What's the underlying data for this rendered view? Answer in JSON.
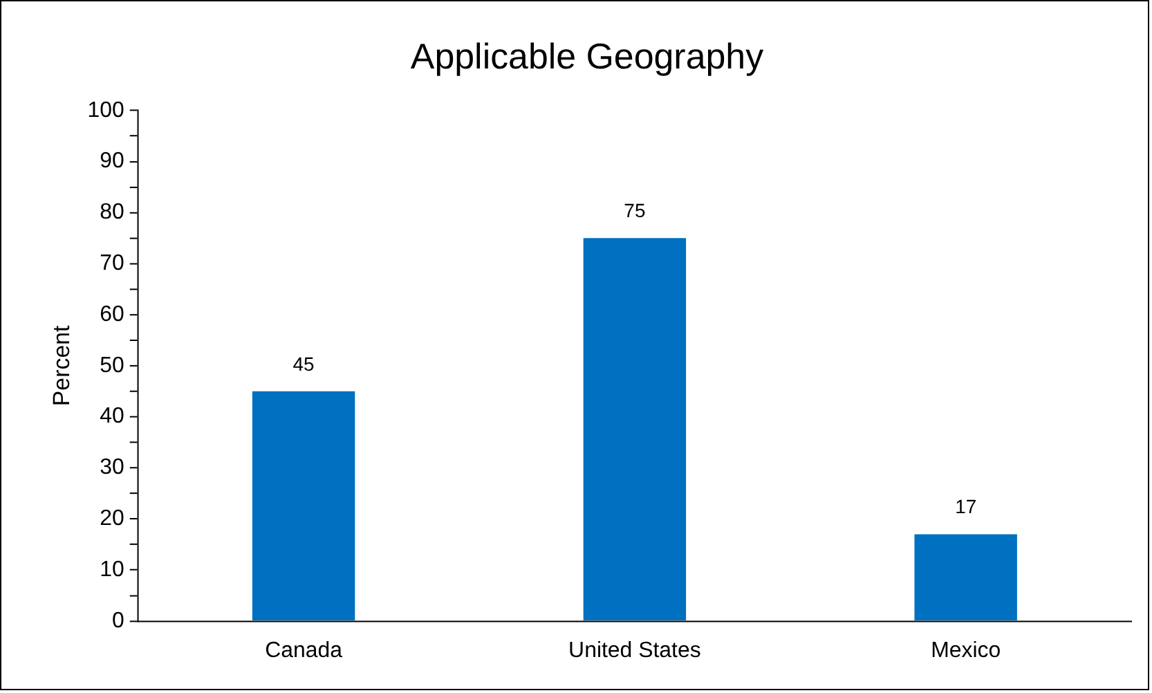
{
  "chart_data": {
    "type": "bar",
    "title": "Applicable Geography",
    "ylabel": "Percent",
    "categories": [
      "Canada",
      "United States",
      "Mexico"
    ],
    "values": [
      45,
      75,
      17
    ],
    "color": "#0070c0",
    "ylim": [
      0,
      100
    ],
    "yticks": [
      0,
      {
        "value": 5,
        "label": null
      },
      10,
      {
        "value": 15,
        "label": null
      },
      20,
      {
        "value": 25,
        "label": null
      },
      30,
      {
        "value": 35,
        "label": null
      },
      40,
      {
        "value": 45,
        "label": null
      },
      50,
      {
        "value": 55,
        "label": null
      },
      60,
      {
        "value": 65,
        "label": null
      },
      70,
      {
        "value": 75,
        "label": null
      },
      80,
      {
        "value": 85,
        "label": null
      },
      90,
      {
        "value": 95,
        "label": null
      },
      100
    ],
    "grid": false,
    "legend": false,
    "data_labels": true
  }
}
